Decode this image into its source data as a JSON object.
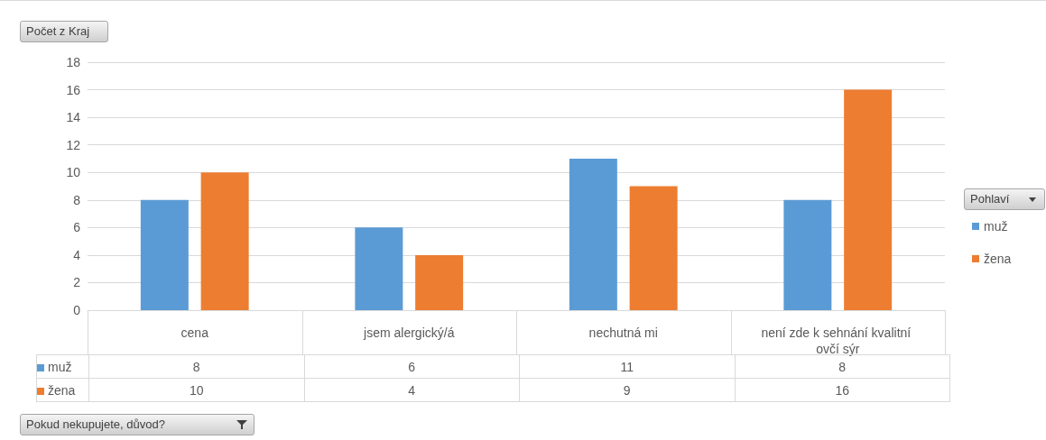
{
  "chart_data": {
    "type": "bar",
    "ylabel": "Počet z Kraj",
    "annotations": [
      "Pokud nekupujete, důvod?"
    ],
    "legend_title": "Pohlaví",
    "categories": [
      "cena",
      "jsem alergický/á",
      "nechutná mi",
      "není zde k sehnání kvalitní ovčí sýr"
    ],
    "series": [
      {
        "name": "muž",
        "color": "#5b9bd5",
        "values": [
          8,
          6,
          11,
          8
        ]
      },
      {
        "name": "žena",
        "color": "#ed7d31",
        "values": [
          10,
          4,
          9,
          16
        ]
      }
    ],
    "ylim": [
      0,
      18
    ],
    "yticks": [
      0,
      2,
      4,
      6,
      8,
      10,
      12,
      14,
      16,
      18
    ],
    "grid": "y",
    "legend": "right",
    "data_labels": true
  }
}
